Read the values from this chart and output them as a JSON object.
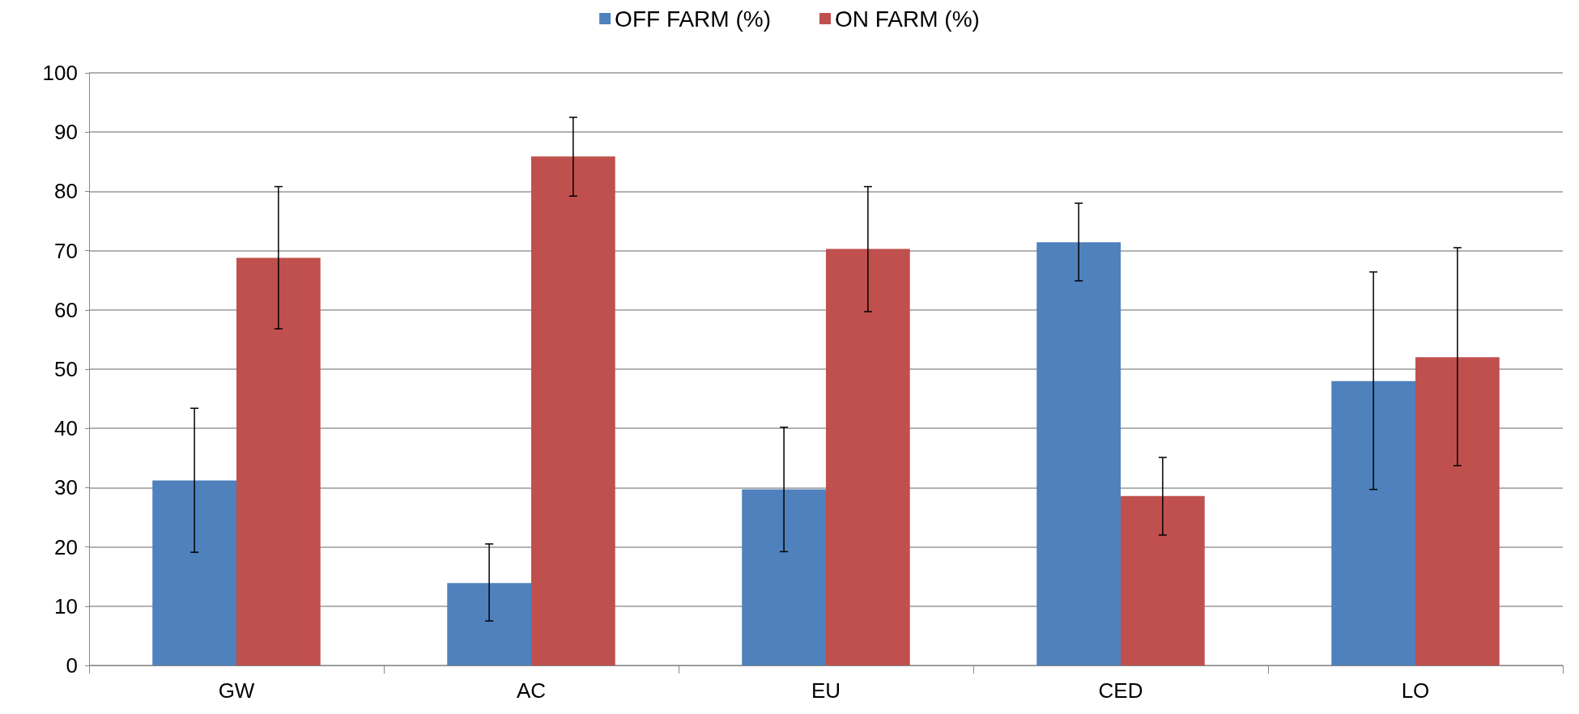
{
  "chart_data": {
    "type": "bar",
    "categories": [
      "GW",
      "AC",
      "EU",
      "CED",
      "LO"
    ],
    "series": [
      {
        "name": "OFF FARM (%)",
        "color": "#4f81bd",
        "values": [
          31.2,
          13.9,
          29.7,
          71.4,
          48.0
        ],
        "errors": [
          [
            19.1,
            43.4
          ],
          [
            7.5,
            20.5
          ],
          [
            19.2,
            40.2
          ],
          [
            64.9,
            78.0
          ],
          [
            29.7,
            66.4
          ]
        ]
      },
      {
        "name": "ON FARM (%)",
        "color": "#c0504d",
        "values": [
          68.8,
          85.9,
          70.3,
          28.6,
          52.0
        ],
        "errors": [
          [
            56.8,
            80.8
          ],
          [
            79.2,
            92.5
          ],
          [
            59.7,
            80.8
          ],
          [
            22.0,
            35.1
          ],
          [
            33.7,
            70.5
          ]
        ]
      }
    ],
    "ylim": [
      0,
      100
    ],
    "yticks": [
      0,
      10,
      20,
      30,
      40,
      50,
      60,
      70,
      80,
      90,
      100
    ],
    "grid": "y",
    "legend": "top"
  }
}
